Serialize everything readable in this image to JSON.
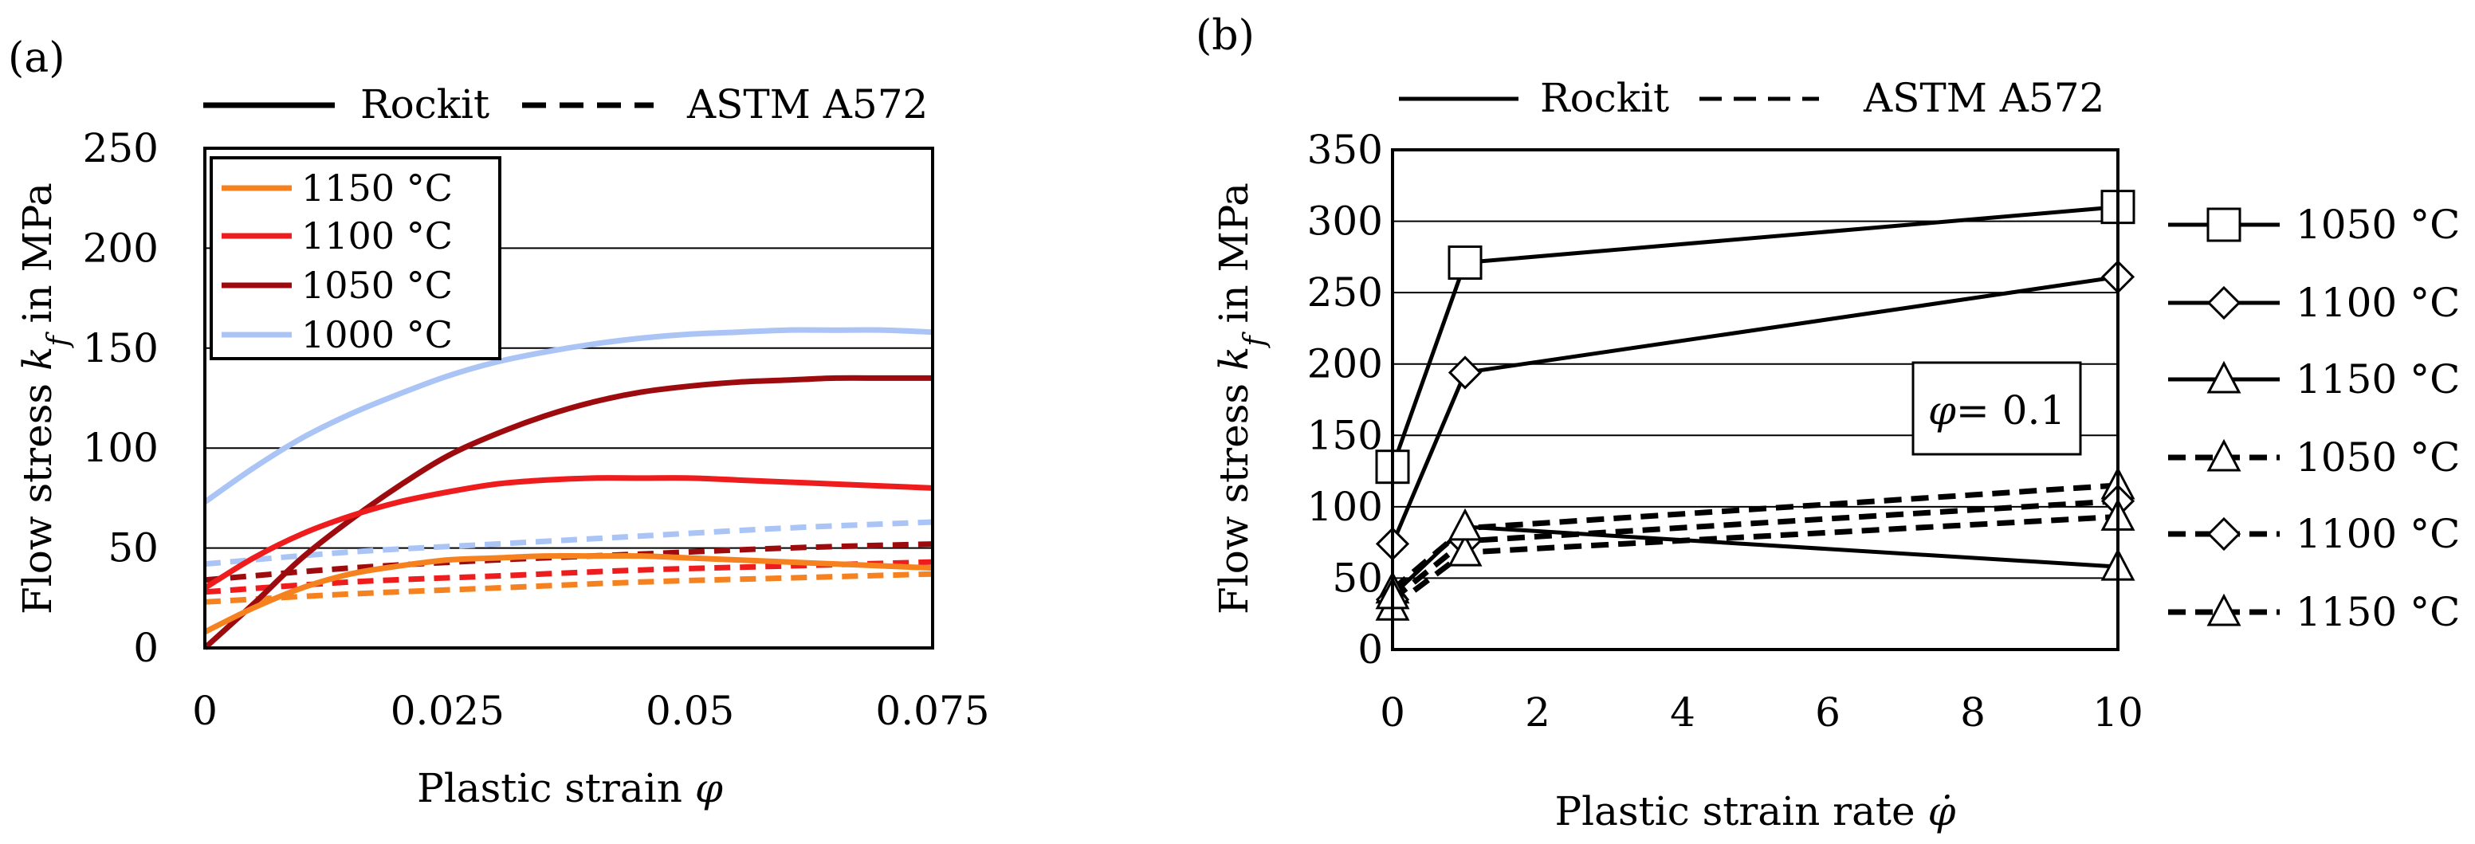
{
  "chart_data": [
    {
      "panel_label": "(a)",
      "type": "line",
      "xlabel": "Plastic strain φ",
      "ylabel": "Flow stress k_f in MPa",
      "ylabel_parts": {
        "pre": "Flow stress ",
        "k": "k",
        "sub": "f",
        "post": " in MPa"
      },
      "xlabel_parts": {
        "pre": "Plastic strain ",
        "sym": "φ"
      },
      "xlim": [
        0,
        0.075
      ],
      "ylim": [
        0,
        250
      ],
      "x_ticks": [
        0,
        0.025,
        0.05,
        0.075
      ],
      "x_tick_labels": [
        "0",
        "0.025",
        "0.05",
        "0.075"
      ],
      "y_ticks": [
        0,
        50,
        100,
        150,
        200,
        250
      ],
      "y_tick_labels": [
        "0",
        "50",
        "100",
        "150",
        "200",
        "250"
      ],
      "grid": "horizontal",
      "style_legend": [
        {
          "label": "Rockit",
          "dash": "solid"
        },
        {
          "label": "ASTM A572",
          "dash": "dashed"
        }
      ],
      "color_legend": [
        {
          "label": "1150 °C",
          "color": "#f5821f"
        },
        {
          "label": "1100 °C",
          "color": "#ee1c1c"
        },
        {
          "label": "1050 °C",
          "color": "#9e0b0f"
        },
        {
          "label": "1000 °C",
          "color": "#a9c4f5"
        }
      ],
      "series": [
        {
          "material": "Rockit",
          "temperature": "1000 °C",
          "color": "#a9c4f5",
          "dash": "solid",
          "x": [
            0,
            0.005,
            0.01,
            0.015,
            0.02,
            0.025,
            0.03,
            0.035,
            0.04,
            0.045,
            0.05,
            0.055,
            0.06,
            0.065,
            0.07,
            0.075
          ],
          "y": [
            73,
            90,
            105,
            117,
            127,
            136,
            143,
            148,
            152,
            155,
            157,
            158,
            159,
            159,
            159,
            158
          ]
        },
        {
          "material": "Rockit",
          "temperature": "1050 °C",
          "color": "#9e0b0f",
          "dash": "solid",
          "x": [
            0,
            0.005,
            0.01,
            0.015,
            0.02,
            0.025,
            0.03,
            0.035,
            0.04,
            0.045,
            0.05,
            0.055,
            0.06,
            0.065,
            0.07,
            0.075
          ],
          "y": [
            0,
            22,
            45,
            64,
            81,
            96,
            107,
            116,
            123,
            128,
            131,
            133,
            134,
            135,
            135,
            135
          ]
        },
        {
          "material": "Rockit",
          "temperature": "1100 °C",
          "color": "#ee1c1c",
          "dash": "solid",
          "x": [
            0,
            0.005,
            0.01,
            0.015,
            0.02,
            0.025,
            0.03,
            0.035,
            0.04,
            0.045,
            0.05,
            0.055,
            0.06,
            0.065,
            0.07,
            0.075
          ],
          "y": [
            30,
            45,
            57,
            66,
            73,
            78,
            82,
            84,
            85,
            85,
            85,
            84,
            83,
            82,
            81,
            80
          ]
        },
        {
          "material": "Rockit",
          "temperature": "1150 °C",
          "color": "#f5821f",
          "dash": "solid",
          "x": [
            0,
            0.005,
            0.01,
            0.015,
            0.02,
            0.025,
            0.03,
            0.035,
            0.04,
            0.045,
            0.05,
            0.055,
            0.06,
            0.065,
            0.07,
            0.075
          ],
          "y": [
            8,
            20,
            30,
            37,
            41,
            44,
            45,
            46,
            46,
            46,
            45,
            44,
            43,
            42,
            41,
            40
          ]
        },
        {
          "material": "ASTM A572",
          "temperature": "1000 °C",
          "color": "#a9c4f5",
          "dash": "dashed",
          "x": [
            0,
            0.015,
            0.03,
            0.045,
            0.06,
            0.075
          ],
          "y": [
            42,
            48,
            52,
            56,
            60,
            63
          ]
        },
        {
          "material": "ASTM A572",
          "temperature": "1050 °C",
          "color": "#9e0b0f",
          "dash": "dashed",
          "x": [
            0,
            0.015,
            0.03,
            0.045,
            0.06,
            0.075
          ],
          "y": [
            34,
            40,
            44,
            47,
            50,
            52
          ]
        },
        {
          "material": "ASTM A572",
          "temperature": "1100 °C",
          "color": "#ee1c1c",
          "dash": "dashed",
          "x": [
            0,
            0.015,
            0.03,
            0.045,
            0.06,
            0.075
          ],
          "y": [
            28,
            33,
            36,
            39,
            41,
            43
          ]
        },
        {
          "material": "ASTM A572",
          "temperature": "1150 °C",
          "color": "#f5821f",
          "dash": "dashed",
          "x": [
            0,
            0.015,
            0.03,
            0.045,
            0.06,
            0.075
          ],
          "y": [
            23,
            27,
            30,
            33,
            35,
            37
          ]
        }
      ]
    },
    {
      "panel_label": "(b)",
      "type": "line",
      "xlabel": "Plastic strain rate φ̇",
      "ylabel": "Flow stress k_f in MPa",
      "ylabel_parts": {
        "pre": "Flow stress ",
        "k": "k",
        "sub": "f",
        "post": " in MPa"
      },
      "xlabel_parts": {
        "pre": "Plastic strain rate ",
        "sym": "φ̇"
      },
      "xlim": [
        0,
        10
      ],
      "ylim": [
        0,
        350
      ],
      "x_ticks": [
        0,
        2,
        4,
        6,
        8,
        10
      ],
      "x_tick_labels": [
        "0",
        "2",
        "4",
        "6",
        "8",
        "10"
      ],
      "y_ticks": [
        0,
        50,
        100,
        150,
        200,
        250,
        300,
        350
      ],
      "y_tick_labels": [
        "0",
        "50",
        "100",
        "150",
        "200",
        "250",
        "300",
        "350"
      ],
      "grid": "horizontal",
      "annotation": {
        "sym": "φ",
        "text": "= 0.1"
      },
      "style_legend": [
        {
          "label": "Rockit",
          "dash": "solid"
        },
        {
          "label": "ASTM A572",
          "dash": "dashed"
        }
      ],
      "series_legend_placement": "right",
      "series": [
        {
          "name": "1050 °C",
          "material": "Rockit",
          "marker": "square",
          "dash": "solid",
          "x": [
            0,
            1,
            10
          ],
          "y": [
            128,
            271,
            310
          ]
        },
        {
          "name": "1100 °C",
          "material": "Rockit",
          "marker": "diamond",
          "dash": "solid",
          "x": [
            0,
            1,
            10
          ],
          "y": [
            74,
            194,
            261
          ]
        },
        {
          "name": "1150 °C",
          "material": "Rockit",
          "marker": "triangle",
          "dash": "solid",
          "x": [
            0,
            1,
            10
          ],
          "y": [
            38,
            86,
            58
          ]
        },
        {
          "name": "1050 °C",
          "material": "ASTM A572",
          "marker": "triangle",
          "dash": "dashed",
          "x": [
            0,
            1,
            10
          ],
          "y": [
            42,
            85,
            115
          ]
        },
        {
          "name": "1100 °C",
          "material": "ASTM A572",
          "marker": "diamond",
          "dash": "dashed",
          "x": [
            0,
            1,
            10
          ],
          "y": [
            35,
            76,
            104
          ]
        },
        {
          "name": "1150 °C",
          "material": "ASTM A572",
          "marker": "triangle",
          "dash": "dashed",
          "x": [
            0,
            1,
            10
          ],
          "y": [
            30,
            68,
            93
          ]
        }
      ]
    }
  ]
}
